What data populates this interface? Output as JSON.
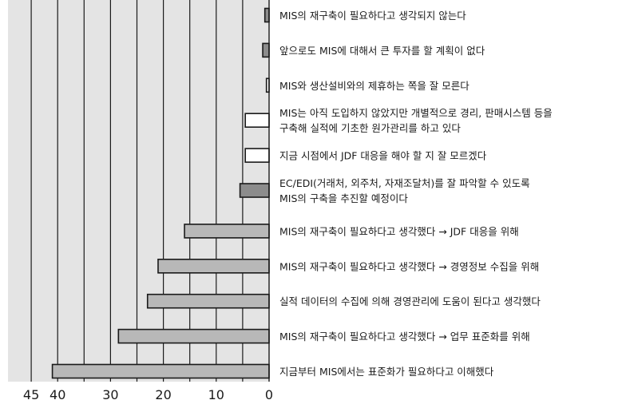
{
  "chart_data": {
    "type": "bar",
    "orientation": "horizontal",
    "direction": "right-to-left",
    "xlim": [
      0,
      45
    ],
    "xticks": [
      0,
      10,
      20,
      30,
      40,
      45
    ],
    "grid": true,
    "colors": {
      "panel": "#e4e4e4",
      "grid": "#1a1a1a",
      "bar_dark": "#8c8c8c",
      "bar_mid": "#b8b8b8",
      "bar_light": "#ffffff",
      "bar_edge": "#1a1a1a"
    },
    "categories": [
      [
        "MIS의 재구축이 필요하다고 생각되지 않는다"
      ],
      [
        "앞으로도 MIS에 대해서 큰 투자를 할 계획이 없다"
      ],
      [
        "MIS와 생산설비와의 제휴하는 쪽을 잘 모른다"
      ],
      [
        "MIS는 아직 도입하지 않았지만 개별적으로 경리, 판매시스템 등을",
        "구축해 실적에 기초한 원가관리를 하고 있다"
      ],
      [
        "지금 시점에서 JDF 대응을 해야 할 지 잘 모르겠다"
      ],
      [
        "EC/EDI(거래처, 외주처, 자재조달처)를 잘 파악할 수 있도록",
        "MIS의 구축을 추진할 예정이다"
      ],
      [
        "MIS의 재구축이 필요하다고 생각했다 → JDF 대응을 위해"
      ],
      [
        "MIS의 재구축이 필요하다고 생각했다 → 경영정보 수집을 위해"
      ],
      [
        "실적 데이터의 수집에 의해 경영관리에 도움이 된다고 생각했다"
      ],
      [
        "MIS의 재구축이 필요하다고 생각했다 → 업무 표준화를 위해"
      ],
      [
        "지금부터 MIS에서는 표준화가 필요하다고 이해했다"
      ]
    ],
    "values": [
      0.8,
      1.2,
      0.5,
      4.5,
      4.5,
      5.5,
      16,
      21,
      23,
      28.5,
      41
    ],
    "shades": [
      "dark",
      "dark",
      "light",
      "light",
      "light",
      "dark",
      "mid",
      "mid",
      "mid",
      "mid",
      "mid"
    ]
  }
}
